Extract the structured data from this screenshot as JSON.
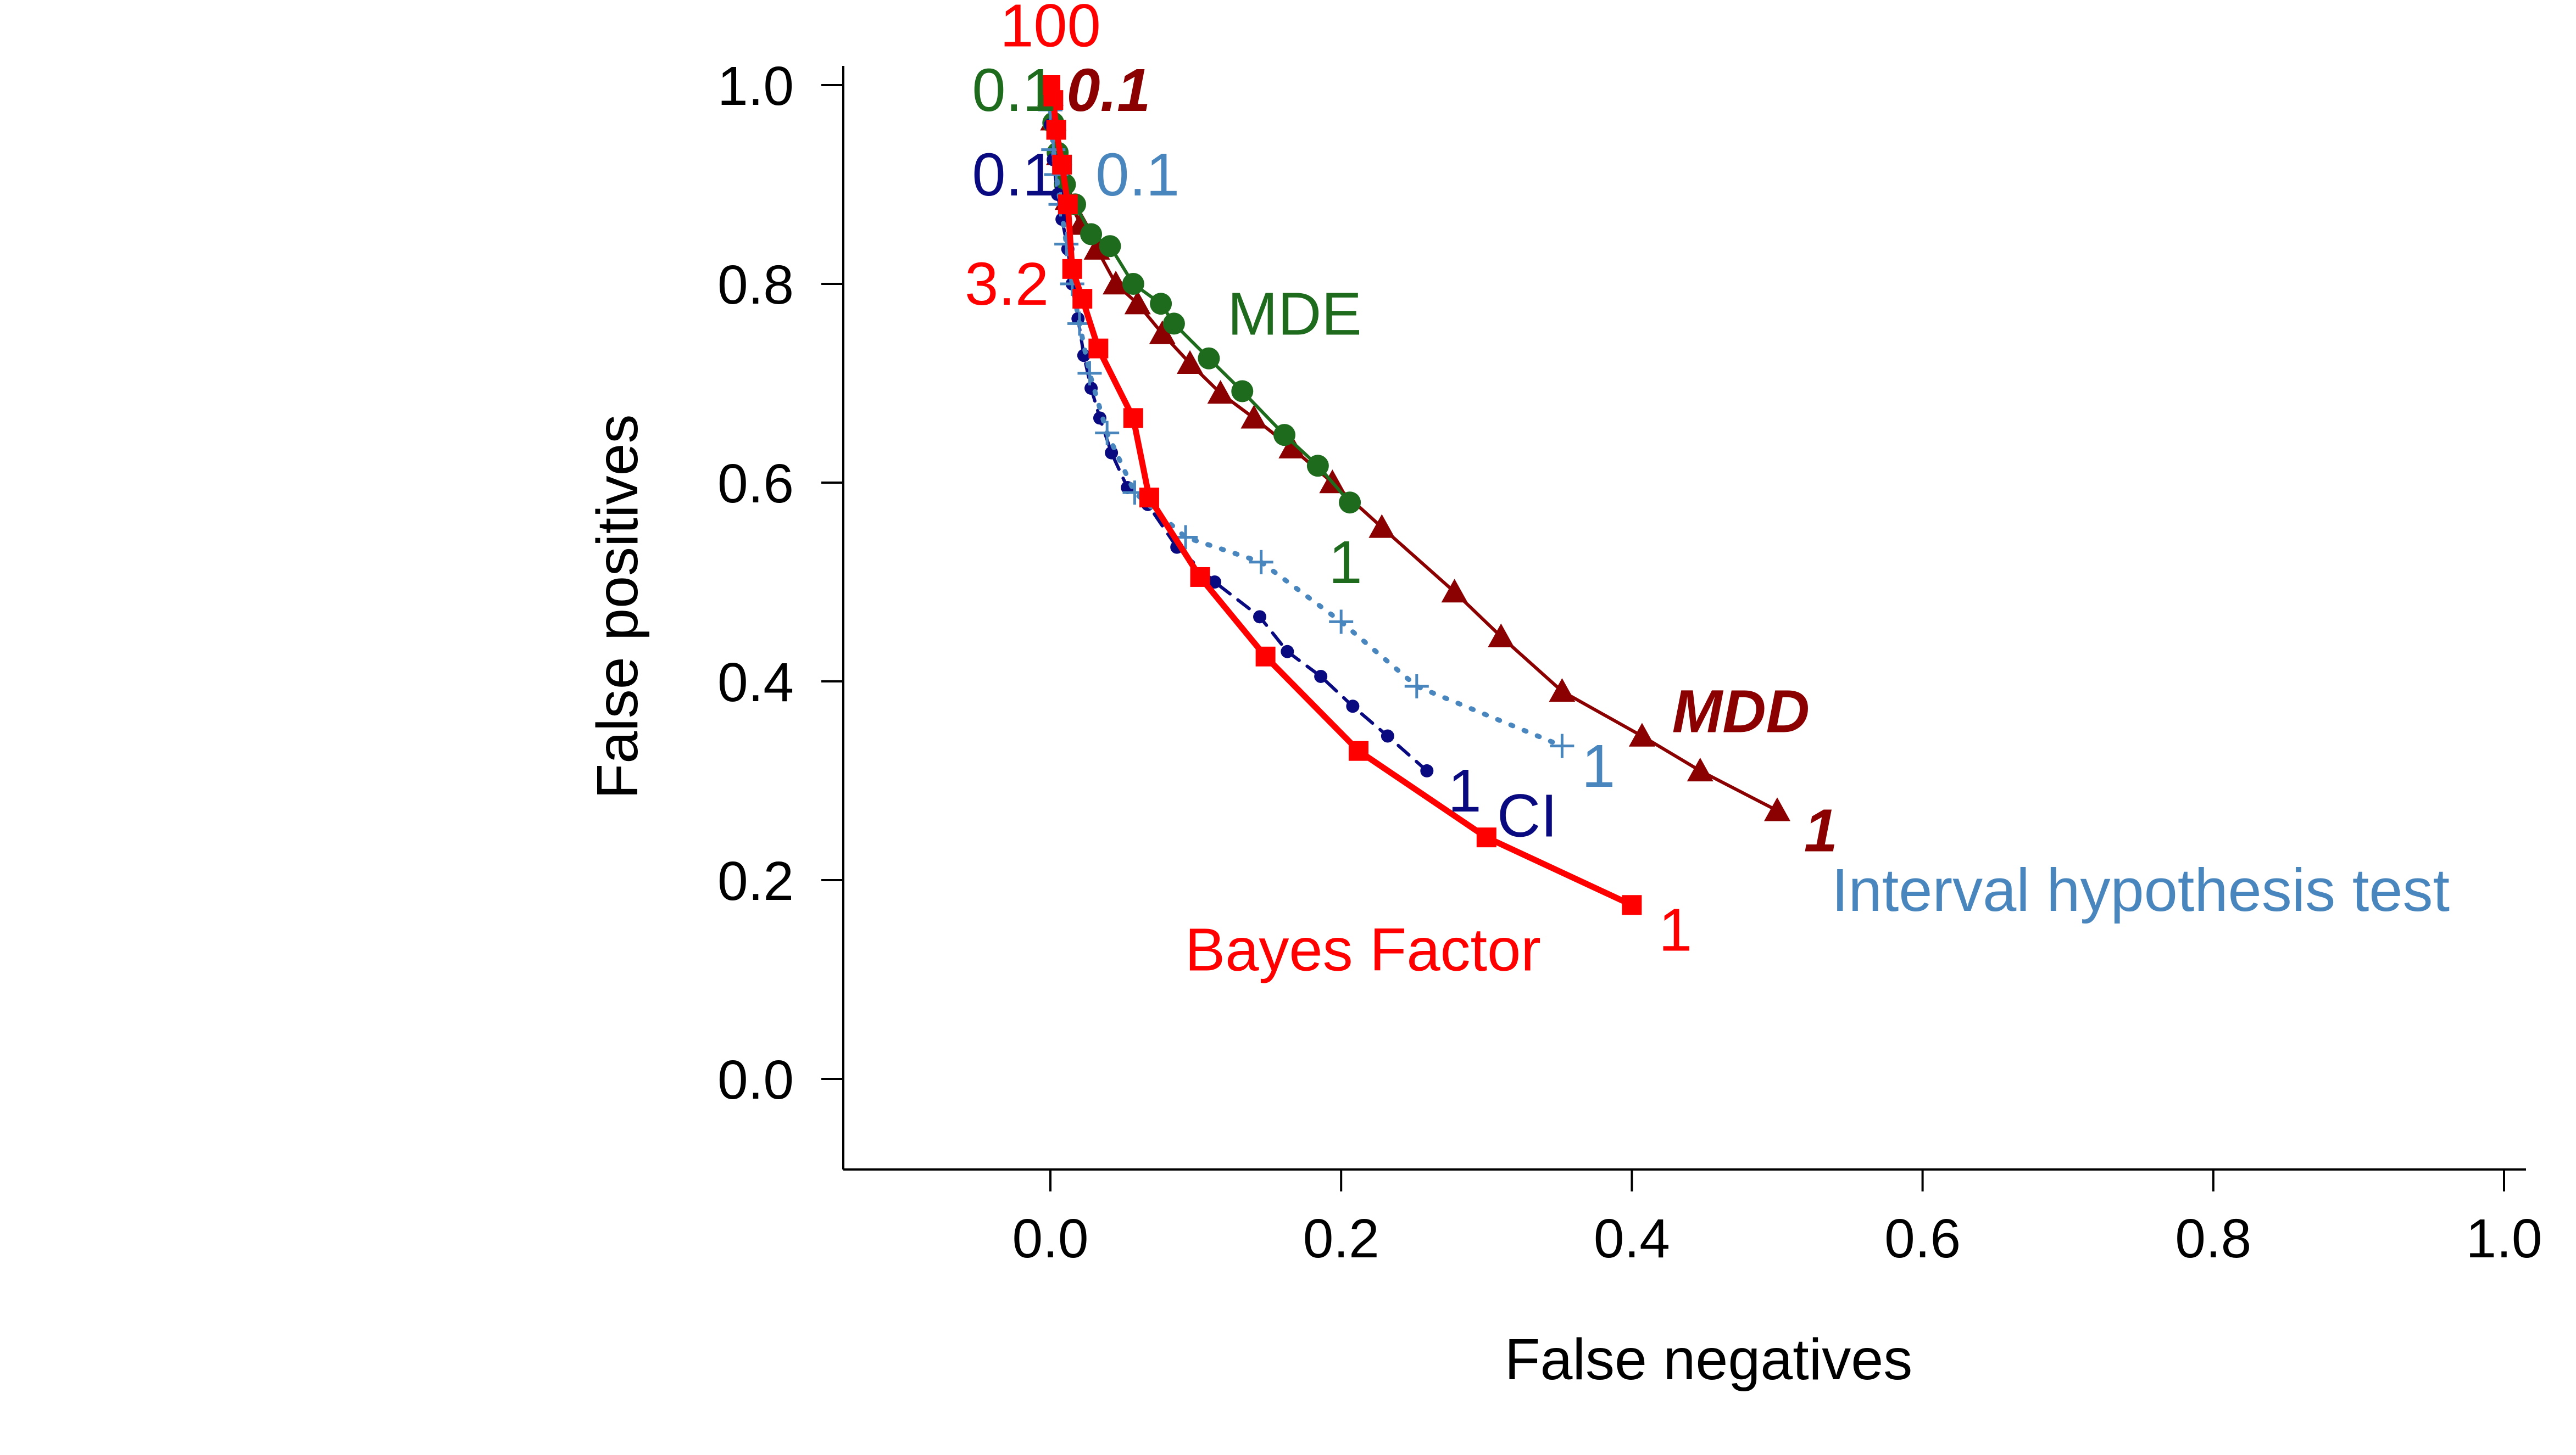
{
  "chart_data": {
    "type": "line",
    "xlabel": "False negatives",
    "ylabel": "False positives",
    "xlim": [
      -0.14,
      1.02
    ],
    "ylim": [
      -0.09,
      1.03
    ],
    "x_ticks": [
      "0.0",
      "0.2",
      "0.4",
      "0.6",
      "0.8",
      "1.0"
    ],
    "y_ticks": [
      "0.0",
      "0.2",
      "0.4",
      "0.6",
      "0.8",
      "1.0"
    ],
    "grid": false,
    "legend": "none",
    "series": [
      {
        "name": "MDD",
        "color": "#8B0000",
        "marker": "triangle",
        "line": "solid",
        "x": [
          0.0,
          0.002,
          0.006,
          0.012,
          0.021,
          0.032,
          0.045,
          0.06,
          0.077,
          0.096,
          0.117,
          0.14,
          0.166,
          0.194,
          0.228,
          0.278,
          0.31,
          0.352,
          0.407,
          0.447,
          0.5
        ],
        "y": [
          0.99,
          0.965,
          0.93,
          0.885,
          0.86,
          0.835,
          0.8,
          0.78,
          0.75,
          0.72,
          0.69,
          0.665,
          0.635,
          0.6,
          0.555,
          0.49,
          0.445,
          0.39,
          0.345,
          0.31,
          0.27
        ]
      },
      {
        "name": "MDE",
        "color": "#1E6B1E",
        "marker": "circle",
        "line": "solid",
        "x": [
          0.0,
          0.002,
          0.005,
          0.01,
          0.017,
          0.028,
          0.041,
          0.057,
          0.076,
          0.085,
          0.109,
          0.132,
          0.161,
          0.184,
          0.206
        ],
        "y": [
          0.985,
          0.962,
          0.932,
          0.9,
          0.88,
          0.85,
          0.838,
          0.8,
          0.78,
          0.76,
          0.725,
          0.692,
          0.648,
          0.617,
          0.58
        ]
      },
      {
        "name": "CI",
        "color": "#0A0A80",
        "marker": "dot",
        "line": "dashed",
        "x": [
          0.0,
          0.002,
          0.005,
          0.008,
          0.012,
          0.015,
          0.019,
          0.023,
          0.028,
          0.034,
          0.042,
          0.053,
          0.067,
          0.087,
          0.113,
          0.144,
          0.163,
          0.186,
          0.208,
          0.232,
          0.259
        ],
        "y": [
          0.96,
          0.925,
          0.89,
          0.865,
          0.835,
          0.8,
          0.765,
          0.728,
          0.695,
          0.665,
          0.63,
          0.595,
          0.578,
          0.535,
          0.5,
          0.465,
          0.43,
          0.405,
          0.375,
          0.345,
          0.31
        ]
      },
      {
        "name": "Interval hypothesis test",
        "color": "#4A86BE",
        "marker": "plus",
        "line": "dotted",
        "x": [
          0.0,
          0.002,
          0.004,
          0.007,
          0.011,
          0.015,
          0.02,
          0.027,
          0.039,
          0.058,
          0.093,
          0.145,
          0.2,
          0.252,
          0.352
        ],
        "y": [
          0.975,
          0.935,
          0.91,
          0.88,
          0.84,
          0.8,
          0.76,
          0.71,
          0.65,
          0.59,
          0.545,
          0.52,
          0.46,
          0.395,
          0.335
        ]
      },
      {
        "name": "Bayes Factor",
        "color": "#FF0000",
        "marker": "square",
        "line": "solid",
        "x": [
          0.0,
          0.002,
          0.004,
          0.008,
          0.012,
          0.015,
          0.022,
          0.033,
          0.057,
          0.068,
          0.103,
          0.148,
          0.212,
          0.3,
          0.4
        ],
        "y": [
          1.0,
          0.985,
          0.955,
          0.92,
          0.88,
          0.815,
          0.785,
          0.735,
          0.665,
          0.585,
          0.505,
          0.425,
          0.33,
          0.243,
          0.175
        ]
      }
    ],
    "annotations": [
      {
        "text": "100",
        "x": 0.0,
        "y": 1.06,
        "color": "#FF0000"
      },
      {
        "text": "0.1",
        "x": -0.025,
        "y": 0.995,
        "color": "#1E6B1E"
      },
      {
        "text": "0.1",
        "x": 0.04,
        "y": 0.995,
        "color": "#8B0000",
        "style": "bold-italic"
      },
      {
        "text": "0.1",
        "x": -0.025,
        "y": 0.91,
        "color": "#0A0A80"
      },
      {
        "text": "0.1",
        "x": 0.06,
        "y": 0.91,
        "color": "#4A86BE"
      },
      {
        "text": "3.2",
        "x": -0.03,
        "y": 0.8,
        "color": "#FF0000"
      },
      {
        "text": "MDE",
        "x": 0.168,
        "y": 0.77,
        "color": "#1E6B1E"
      },
      {
        "text": "1",
        "x": 0.203,
        "y": 0.52,
        "color": "#1E6B1E"
      },
      {
        "text": "MDD",
        "x": 0.475,
        "y": 0.37,
        "color": "#8B0000",
        "style": "bold-italic"
      },
      {
        "text": "1",
        "x": 0.377,
        "y": 0.315,
        "color": "#4A86BE"
      },
      {
        "text": "1",
        "x": 0.285,
        "y": 0.29,
        "color": "#0A0A80"
      },
      {
        "text": "CI",
        "x": 0.328,
        "y": 0.265,
        "color": "#0A0A80"
      },
      {
        "text": "1",
        "x": 0.53,
        "y": 0.25,
        "color": "#8B0000",
        "style": "bold-italic"
      },
      {
        "text": "Interval hypothesis test",
        "x": 0.75,
        "y": 0.19,
        "color": "#4A86BE"
      },
      {
        "text": "Bayes Factor",
        "x": 0.215,
        "y": 0.13,
        "color": "#FF0000"
      },
      {
        "text": "1",
        "x": 0.43,
        "y": 0.15,
        "color": "#FF0000"
      }
    ]
  }
}
